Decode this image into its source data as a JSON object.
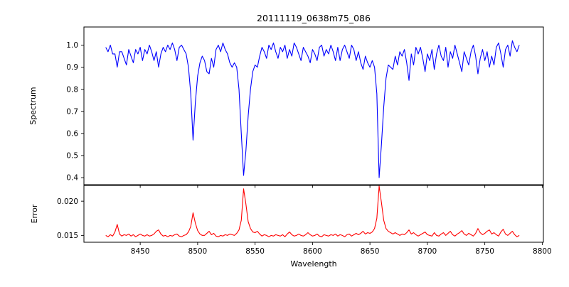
{
  "figure": {
    "title": "20111119_0638m75_086",
    "background": "#ffffff",
    "spine_color": "#000000"
  },
  "chart_data": {
    "type": "line",
    "title": "20111119_0638m75_086",
    "xlabel": "Wavelength",
    "xlim": [
      8401,
      8801
    ],
    "x_tick_values": [
      8450,
      8500,
      8550,
      8600,
      8650,
      8700,
      8750,
      8800
    ],
    "x_tick_labels": [
      "8450",
      "8500",
      "8550",
      "8600",
      "8650",
      "8700",
      "8750",
      "8800"
    ],
    "grid": false,
    "legend": "none",
    "panels": [
      {
        "name": "spectrum",
        "ylabel": "Spectrum",
        "ylim": [
          0.368,
          1.082
        ],
        "y_tick_values": [
          0.4,
          0.5,
          0.6,
          0.7,
          0.8,
          0.9,
          1.0
        ],
        "y_tick_labels": [
          "0.4",
          "0.5",
          "0.6",
          "0.7",
          "0.8",
          "0.9",
          "1.0"
        ],
        "series": {
          "name": "spectrum-flux",
          "color": "#0000ff",
          "x": [
            8420,
            8422,
            8424,
            8426,
            8428,
            8430,
            8432,
            8434,
            8436,
            8438,
            8440,
            8442,
            8444,
            8446,
            8448,
            8450,
            8452,
            8454,
            8456,
            8458,
            8460,
            8462,
            8464,
            8466,
            8468,
            8470,
            8472,
            8474,
            8476,
            8478,
            8480,
            8482,
            8484,
            8486,
            8488,
            8490,
            8492,
            8494,
            8496,
            8498,
            8500,
            8502,
            8504,
            8506,
            8508,
            8510,
            8512,
            8514,
            8516,
            8518,
            8520,
            8522,
            8524,
            8526,
            8528,
            8530,
            8532,
            8534,
            8536,
            8538,
            8540,
            8542,
            8544,
            8546,
            8548,
            8550,
            8552,
            8554,
            8556,
            8558,
            8560,
            8562,
            8564,
            8566,
            8568,
            8570,
            8572,
            8574,
            8576,
            8578,
            8580,
            8582,
            8584,
            8586,
            8588,
            8590,
            8592,
            8594,
            8596,
            8598,
            8600,
            8602,
            8604,
            8606,
            8608,
            8610,
            8612,
            8614,
            8616,
            8618,
            8620,
            8622,
            8624,
            8626,
            8628,
            8630,
            8632,
            8634,
            8636,
            8638,
            8640,
            8642,
            8644,
            8646,
            8648,
            8650,
            8652,
            8654,
            8656,
            8658,
            8660,
            8662,
            8664,
            8666,
            8668,
            8670,
            8672,
            8674,
            8676,
            8678,
            8680,
            8682,
            8684,
            8686,
            8688,
            8690,
            8692,
            8694,
            8696,
            8698,
            8700,
            8702,
            8704,
            8706,
            8708,
            8710,
            8712,
            8714,
            8716,
            8718,
            8720,
            8722,
            8724,
            8726,
            8728,
            8730,
            8732,
            8734,
            8736,
            8738,
            8740,
            8742,
            8744,
            8746,
            8748,
            8750,
            8752,
            8754,
            8756,
            8758,
            8760,
            8762,
            8764,
            8766,
            8768,
            8770,
            8772,
            8774,
            8776,
            8778,
            8780
          ],
          "y": [
            0.99,
            0.97,
            1.0,
            0.96,
            0.96,
            0.9,
            0.97,
            0.97,
            0.94,
            0.91,
            0.98,
            0.95,
            0.92,
            0.98,
            0.96,
            0.99,
            0.93,
            0.98,
            0.96,
            1.0,
            0.97,
            0.93,
            0.97,
            0.9,
            0.96,
            0.99,
            0.97,
            1.0,
            0.98,
            1.01,
            0.98,
            0.93,
            0.99,
            1.0,
            0.98,
            0.96,
            0.9,
            0.78,
            0.57,
            0.74,
            0.86,
            0.92,
            0.95,
            0.93,
            0.88,
            0.87,
            0.94,
            0.9,
            0.98,
            1.0,
            0.97,
            1.01,
            0.98,
            0.96,
            0.92,
            0.9,
            0.92,
            0.9,
            0.8,
            0.6,
            0.41,
            0.52,
            0.68,
            0.8,
            0.88,
            0.91,
            0.9,
            0.95,
            0.99,
            0.97,
            0.94,
            1.0,
            0.98,
            1.01,
            0.97,
            0.94,
            0.99,
            0.97,
            1.0,
            0.94,
            0.98,
            0.95,
            1.01,
            0.99,
            0.96,
            0.93,
            0.99,
            0.97,
            0.95,
            0.92,
            0.98,
            0.96,
            0.93,
            0.99,
            1.0,
            0.95,
            0.98,
            0.96,
            1.0,
            0.97,
            0.93,
            0.99,
            0.93,
            0.98,
            1.0,
            0.97,
            0.94,
            1.0,
            0.98,
            0.93,
            0.97,
            0.92,
            0.89,
            0.95,
            0.92,
            0.9,
            0.93,
            0.9,
            0.78,
            0.4,
            0.55,
            0.72,
            0.85,
            0.91,
            0.9,
            0.89,
            0.95,
            0.91,
            0.97,
            0.95,
            0.98,
            0.92,
            0.84,
            0.96,
            0.91,
            0.99,
            0.96,
            0.99,
            0.94,
            0.88,
            0.96,
            0.93,
            0.98,
            0.89,
            0.96,
            1.0,
            0.95,
            0.93,
            0.99,
            0.9,
            0.97,
            0.94,
            1.0,
            0.96,
            0.92,
            0.88,
            0.97,
            0.94,
            0.91,
            0.97,
            1.0,
            0.95,
            0.87,
            0.94,
            0.98,
            0.93,
            0.97,
            0.9,
            0.95,
            0.91,
            0.99,
            1.01,
            0.96,
            0.9,
            0.98,
            1.0,
            0.95,
            1.02,
            0.99,
            0.97,
            1.0
          ]
        }
      },
      {
        "name": "error",
        "ylabel": "Error",
        "ylim": [
          0.014,
          0.0223
        ],
        "y_tick_values": [
          0.015,
          0.02
        ],
        "y_tick_labels": [
          "0.015",
          "0.020"
        ],
        "series": {
          "name": "error-values",
          "color": "#ff0000",
          "x": [
            8420,
            8422,
            8424,
            8426,
            8428,
            8430,
            8432,
            8434,
            8436,
            8438,
            8440,
            8442,
            8444,
            8446,
            8448,
            8450,
            8452,
            8454,
            8456,
            8458,
            8460,
            8462,
            8464,
            8466,
            8468,
            8470,
            8472,
            8474,
            8476,
            8478,
            8480,
            8482,
            8484,
            8486,
            8488,
            8490,
            8492,
            8494,
            8496,
            8498,
            8500,
            8502,
            8504,
            8506,
            8508,
            8510,
            8512,
            8514,
            8516,
            8518,
            8520,
            8522,
            8524,
            8526,
            8528,
            8530,
            8532,
            8534,
            8536,
            8538,
            8540,
            8542,
            8544,
            8546,
            8548,
            8550,
            8552,
            8554,
            8556,
            8558,
            8560,
            8562,
            8564,
            8566,
            8568,
            8570,
            8572,
            8574,
            8576,
            8578,
            8580,
            8582,
            8584,
            8586,
            8588,
            8590,
            8592,
            8594,
            8596,
            8598,
            8600,
            8602,
            8604,
            8606,
            8608,
            8610,
            8612,
            8614,
            8616,
            8618,
            8620,
            8622,
            8624,
            8626,
            8628,
            8630,
            8632,
            8634,
            8636,
            8638,
            8640,
            8642,
            8644,
            8646,
            8648,
            8650,
            8652,
            8654,
            8656,
            8658,
            8660,
            8662,
            8664,
            8666,
            8668,
            8670,
            8672,
            8674,
            8676,
            8678,
            8680,
            8682,
            8684,
            8686,
            8688,
            8690,
            8692,
            8694,
            8696,
            8698,
            8700,
            8702,
            8704,
            8706,
            8708,
            8710,
            8712,
            8714,
            8716,
            8718,
            8720,
            8722,
            8724,
            8726,
            8728,
            8730,
            8732,
            8734,
            8736,
            8738,
            8740,
            8742,
            8744,
            8746,
            8748,
            8750,
            8752,
            8754,
            8756,
            8758,
            8760,
            8762,
            8764,
            8766,
            8768,
            8770,
            8772,
            8774,
            8776,
            8778,
            8780
          ],
          "y": [
            0.015,
            0.0148,
            0.0151,
            0.0149,
            0.0155,
            0.0166,
            0.0152,
            0.0149,
            0.0151,
            0.015,
            0.0152,
            0.0149,
            0.0151,
            0.0148,
            0.015,
            0.0152,
            0.015,
            0.0149,
            0.0151,
            0.0149,
            0.015,
            0.0152,
            0.0156,
            0.0158,
            0.0152,
            0.0149,
            0.015,
            0.0148,
            0.015,
            0.0149,
            0.0151,
            0.0152,
            0.0149,
            0.0148,
            0.015,
            0.0151,
            0.0155,
            0.0163,
            0.0183,
            0.0168,
            0.0157,
            0.0152,
            0.015,
            0.015,
            0.0153,
            0.0156,
            0.0151,
            0.0153,
            0.0149,
            0.0148,
            0.015,
            0.0149,
            0.0151,
            0.015,
            0.0152,
            0.0151,
            0.015,
            0.0153,
            0.0158,
            0.0172,
            0.0218,
            0.0196,
            0.017,
            0.016,
            0.0155,
            0.0154,
            0.0156,
            0.0152,
            0.0149,
            0.0151,
            0.015,
            0.0148,
            0.015,
            0.0149,
            0.0151,
            0.015,
            0.0149,
            0.0151,
            0.0148,
            0.0152,
            0.0155,
            0.0151,
            0.0149,
            0.015,
            0.0152,
            0.015,
            0.0149,
            0.0151,
            0.0154,
            0.0151,
            0.0149,
            0.015,
            0.0152,
            0.0149,
            0.0148,
            0.0151,
            0.015,
            0.0149,
            0.0151,
            0.015,
            0.0152,
            0.0149,
            0.0151,
            0.015,
            0.0148,
            0.0151,
            0.0152,
            0.0149,
            0.0151,
            0.0153,
            0.0151,
            0.0153,
            0.0156,
            0.0152,
            0.0154,
            0.0153,
            0.0155,
            0.016,
            0.0175,
            0.0222,
            0.0198,
            0.0172,
            0.016,
            0.0156,
            0.0154,
            0.0152,
            0.0154,
            0.0152,
            0.015,
            0.0152,
            0.0151,
            0.0154,
            0.0158,
            0.0152,
            0.0154,
            0.0151,
            0.0149,
            0.0151,
            0.0153,
            0.0155,
            0.0151,
            0.015,
            0.0149,
            0.0154,
            0.015,
            0.0149,
            0.0152,
            0.0154,
            0.015,
            0.0153,
            0.0156,
            0.0151,
            0.0149,
            0.0152,
            0.0154,
            0.0157,
            0.0152,
            0.015,
            0.0153,
            0.0151,
            0.0149,
            0.0153,
            0.016,
            0.0154,
            0.0151,
            0.0153,
            0.0156,
            0.0158,
            0.0152,
            0.0154,
            0.0151,
            0.0149,
            0.0155,
            0.0159,
            0.0152,
            0.015,
            0.0153,
            0.0156,
            0.0151,
            0.0148,
            0.015
          ]
        }
      }
    ]
  }
}
